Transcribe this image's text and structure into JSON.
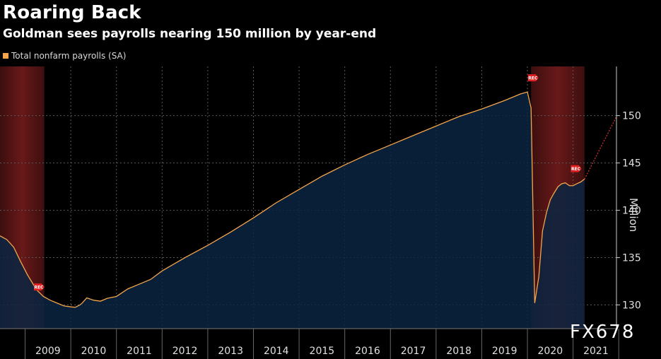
{
  "title": "Roaring Back",
  "subtitle": "Goldman sees payrolls nearing 150 million by year-end",
  "watermark": "FX678",
  "recession_marker": "REC",
  "colors": {
    "line": "#f5a54a",
    "area": "#0b2442",
    "recession": "#6e1a1a",
    "projection": "#e03030",
    "grid": "#3a3a3a",
    "marker": "#e02020"
  },
  "chart_data": {
    "type": "area",
    "title": "Roaring Back",
    "subtitle": "Goldman sees payrolls nearing 150 million by year-end",
    "ylabel": "Million",
    "legend": [
      "Total nonfarm payrolls (SA)"
    ],
    "legend_position": "top-left",
    "y_axis_side": "right",
    "ylim": [
      127.5,
      155.2
    ],
    "yticks": [
      130,
      135,
      140,
      145,
      150
    ],
    "xlim": [
      2008.45,
      2021.95
    ],
    "xtick_labels": [
      "2009",
      "2010",
      "2011",
      "2012",
      "2013",
      "2014",
      "2015",
      "2016",
      "2017",
      "2018",
      "2019",
      "2020",
      "2021"
    ],
    "grid": true,
    "series": [
      {
        "name": "Total nonfarm payrolls (SA)",
        "x": [
          2008.45,
          2008.6,
          2008.75,
          2008.9,
          2009.05,
          2009.15,
          2009.25,
          2009.4,
          2009.55,
          2009.7,
          2009.85,
          2010.0,
          2010.1,
          2010.2,
          2010.25,
          2010.35,
          2010.5,
          2010.65,
          2010.8,
          2011.0,
          2011.25,
          2011.5,
          2011.75,
          2012.0,
          2012.5,
          2013.0,
          2013.5,
          2014.0,
          2014.5,
          2015.0,
          2015.5,
          2016.0,
          2016.5,
          2017.0,
          2017.5,
          2018.0,
          2018.5,
          2019.0,
          2019.5,
          2019.85,
          2020.0,
          2020.08,
          2020.16,
          2020.25,
          2020.33,
          2020.42,
          2020.5,
          2020.58,
          2020.67,
          2020.75,
          2020.83,
          2020.92,
          2021.0,
          2021.08,
          2021.17,
          2021.25
        ],
        "y": [
          137.3,
          136.9,
          136.1,
          134.6,
          133.2,
          132.4,
          131.6,
          130.9,
          130.5,
          130.2,
          129.9,
          129.8,
          129.75,
          130.0,
          130.2,
          130.75,
          130.5,
          130.4,
          130.7,
          130.9,
          131.7,
          132.2,
          132.7,
          133.6,
          135.0,
          136.3,
          137.7,
          139.2,
          140.8,
          142.2,
          143.6,
          144.8,
          145.9,
          146.9,
          147.9,
          148.9,
          149.9,
          150.7,
          151.6,
          152.3,
          152.5,
          150.8,
          130.2,
          133.0,
          137.8,
          139.8,
          141.1,
          141.8,
          142.5,
          142.8,
          142.9,
          142.6,
          142.6,
          142.8,
          143.0,
          143.3
        ]
      },
      {
        "name": "",
        "x": [
          2021.25,
          2021.95
        ],
        "y": [
          143.3,
          149.9
        ]
      }
    ],
    "recession_periods": [
      [
        2008.45,
        2009.42
      ],
      [
        2020.08,
        2021.25
      ]
    ],
    "recession_marker_points": [
      {
        "x": 2009.3,
        "y": 131.9
      },
      {
        "x": 2020.12,
        "y": 154.0
      },
      {
        "x": 2021.06,
        "y": 144.4
      }
    ]
  }
}
